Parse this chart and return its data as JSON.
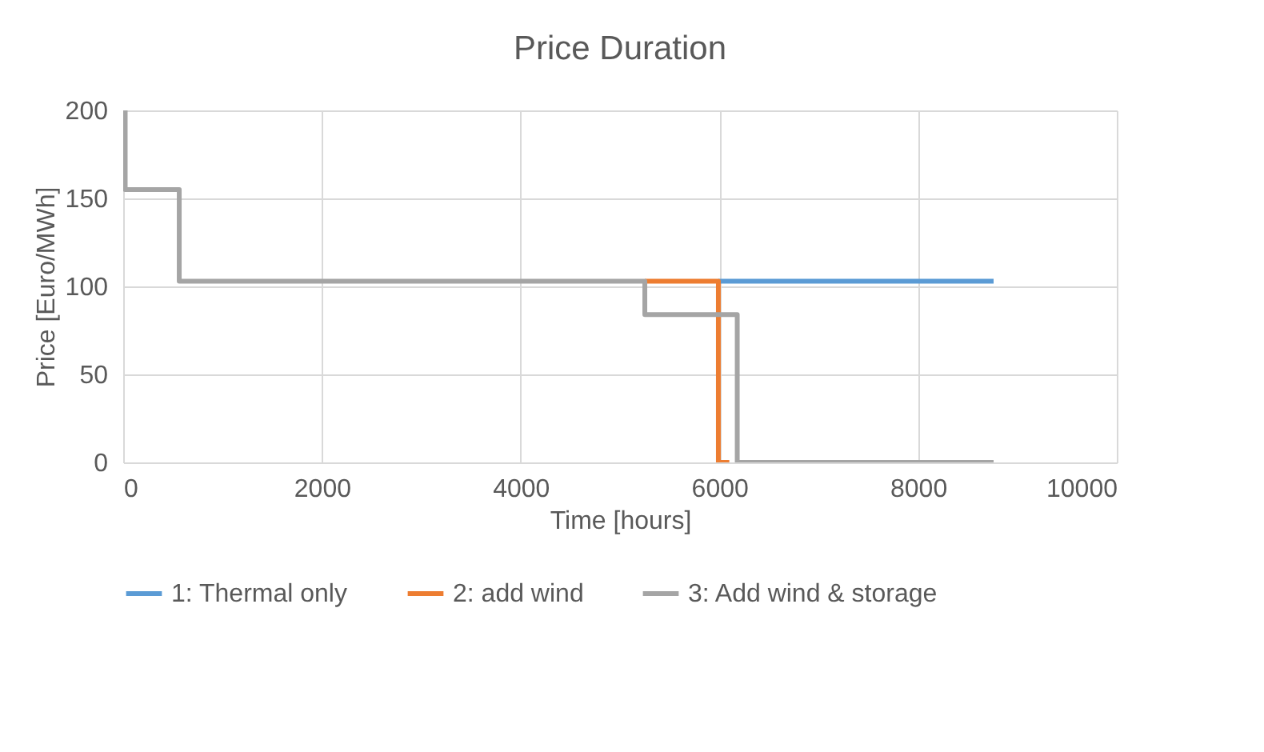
{
  "chart_data": {
    "type": "step",
    "title": "Price Duration",
    "xlabel": "Time [hours]",
    "ylabel": "Price [Euro/MWh]",
    "xlim": [
      0,
      10000
    ],
    "xticks": [
      0,
      2000,
      4000,
      6000,
      8000,
      10000
    ],
    "ylim": [
      0,
      200
    ],
    "yticks": [
      0,
      50,
      100,
      150,
      200
    ],
    "grid": true,
    "legend": "bottom",
    "series": [
      {
        "name": "1: Thermal only",
        "color": "#5b9bd5",
        "x": [
          5990,
          8760
        ],
        "values": [
          103,
          103
        ]
      },
      {
        "name": "2: add wind",
        "color": "#ed7d31",
        "x": [
          5250,
          5990,
          6100
        ],
        "values": [
          103,
          0,
          0
        ]
      },
      {
        "name": "3: Add wind & storage",
        "color": "#a5a5a5",
        "x": [
          0,
          20,
          564,
          5250,
          6180,
          8760
        ],
        "values": [
          200,
          155,
          103,
          84,
          0,
          0
        ]
      }
    ]
  }
}
